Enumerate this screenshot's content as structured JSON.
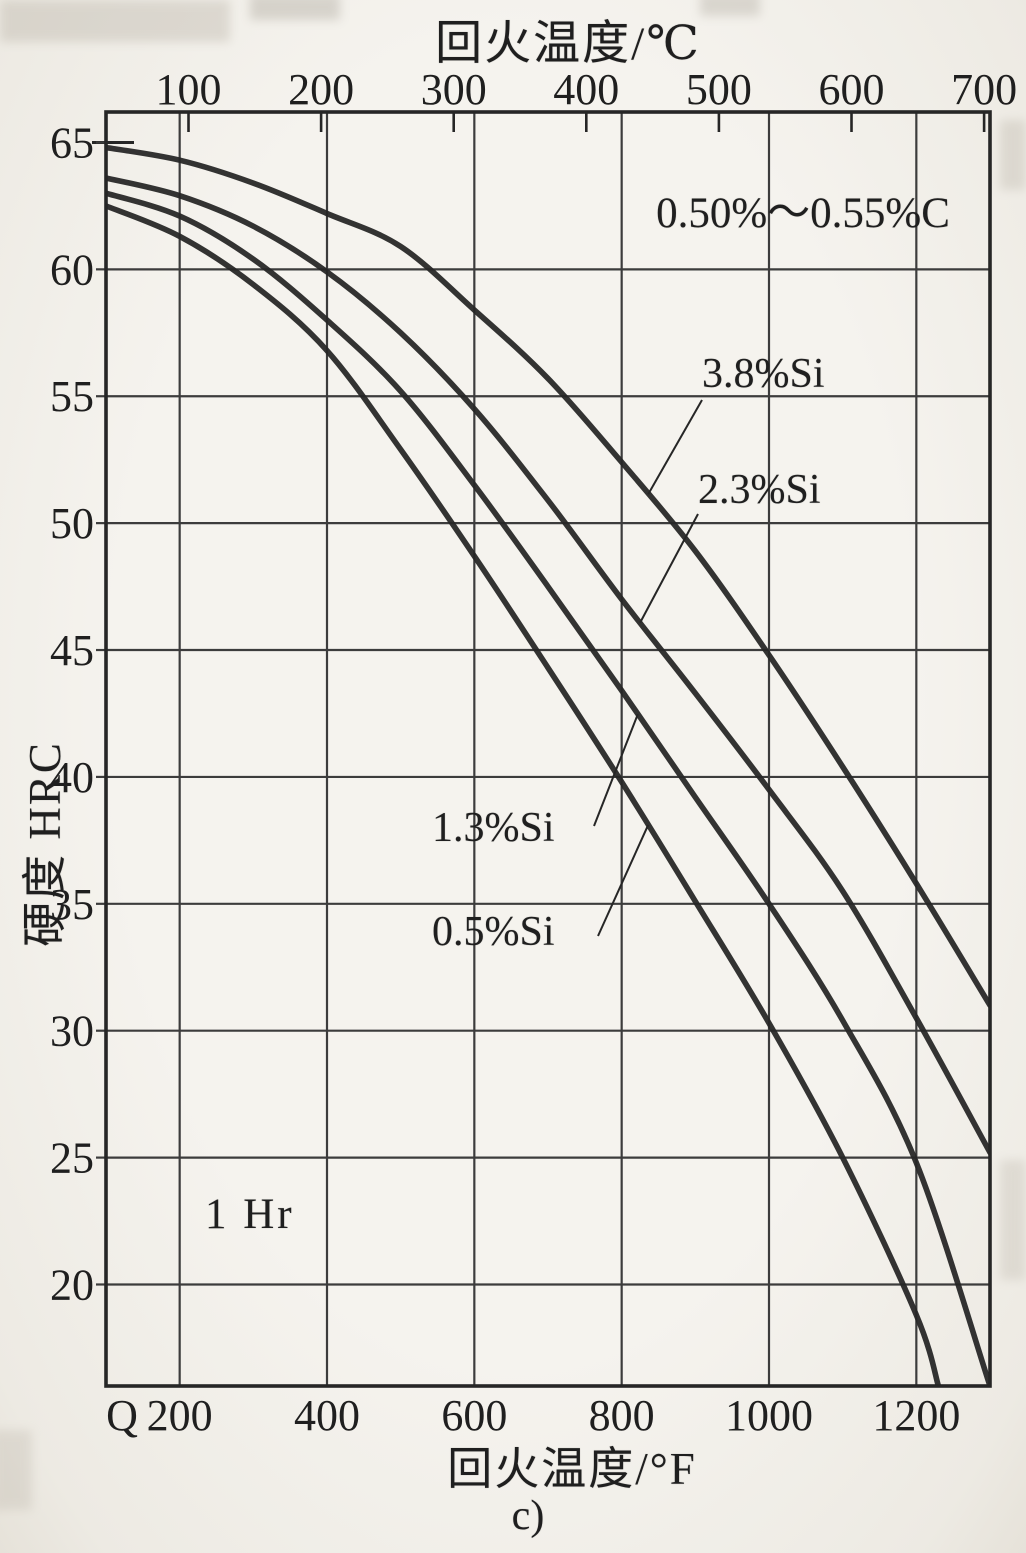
{
  "titles": {
    "top_axis": "回火温度/℃",
    "bottom_axis": "回火温度/°F",
    "y_axis": "硬度 HRC"
  },
  "figure": {
    "annotation": "0.50%～0.55%C",
    "note": "1 Hr",
    "caption": "c)"
  },
  "colors": {
    "ink": "#262626",
    "grid": "#3c3c3c",
    "paper": "#f4f2ed"
  },
  "chart_data": {
    "type": "line",
    "xlabel": "回火温度/°F",
    "xlabel_top": "回火温度/℃",
    "ylabel": "硬度 HRC",
    "grid": true,
    "legend_position": "labels-on-plot with leader lines",
    "x_axis_f": {
      "min": 100,
      "max": 1300,
      "ticks": [
        200,
        400,
        600,
        800,
        1000,
        1200
      ],
      "quench_label": "Q"
    },
    "x_axis_c": {
      "ticks": [
        100,
        200,
        300,
        400,
        500,
        600,
        700
      ]
    },
    "y_axis": {
      "min": 16,
      "max": 66.2,
      "ticks": [
        65,
        60,
        55,
        50,
        45,
        40,
        35,
        30,
        25,
        20
      ],
      "gridline_ticks": [
        60,
        55,
        50,
        45,
        40,
        35,
        30,
        25,
        20
      ],
      "dash_only_ticks": [
        65
      ]
    },
    "series": [
      {
        "name": "3.8%Si",
        "points": [
          [
            100,
            64.8
          ],
          [
            200,
            64.3
          ],
          [
            300,
            63.4
          ],
          [
            400,
            62.2
          ],
          [
            500,
            60.9
          ],
          [
            600,
            58.4
          ],
          [
            700,
            55.7
          ],
          [
            800,
            52.4
          ],
          [
            900,
            48.9
          ],
          [
            1000,
            44.8
          ],
          [
            1100,
            40.4
          ],
          [
            1200,
            35.8
          ],
          [
            1300,
            31.0
          ]
        ]
      },
      {
        "name": "2.3%Si",
        "points": [
          [
            100,
            63.6
          ],
          [
            200,
            62.9
          ],
          [
            300,
            61.7
          ],
          [
            400,
            59.9
          ],
          [
            500,
            57.5
          ],
          [
            600,
            54.5
          ],
          [
            700,
            50.9
          ],
          [
            800,
            47.0
          ],
          [
            900,
            43.3
          ],
          [
            1000,
            39.5
          ],
          [
            1100,
            35.5
          ],
          [
            1200,
            30.5
          ],
          [
            1300,
            25.2
          ]
        ]
      },
      {
        "name": "1.3%Si",
        "points": [
          [
            100,
            63.0
          ],
          [
            200,
            62.1
          ],
          [
            300,
            60.4
          ],
          [
            400,
            58.0
          ],
          [
            500,
            55.2
          ],
          [
            600,
            51.5
          ],
          [
            700,
            47.5
          ],
          [
            800,
            43.4
          ],
          [
            900,
            39.2
          ],
          [
            1000,
            35.0
          ],
          [
            1100,
            30.4
          ],
          [
            1200,
            24.8
          ],
          [
            1300,
            16.0
          ]
        ]
      },
      {
        "name": "0.5%Si",
        "points": [
          [
            100,
            62.5
          ],
          [
            200,
            61.3
          ],
          [
            300,
            59.4
          ],
          [
            400,
            56.8
          ],
          [
            500,
            52.9
          ],
          [
            600,
            48.7
          ],
          [
            700,
            44.3
          ],
          [
            800,
            39.8
          ],
          [
            900,
            35.1
          ],
          [
            1000,
            30.3
          ],
          [
            1100,
            25.0
          ],
          [
            1200,
            18.8
          ],
          [
            1230,
            16.0
          ]
        ]
      }
    ]
  }
}
